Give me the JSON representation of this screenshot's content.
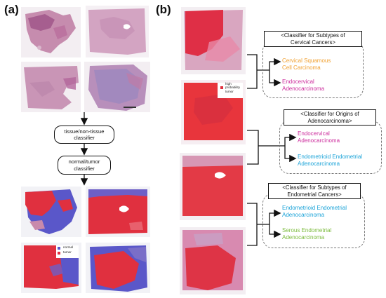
{
  "panel_a": {
    "label": "(a)",
    "flow_step1": "tissue/non-tissue\nclassifier",
    "flow_step2": "normal/tumor\nclassifier",
    "legend_normal": "normal",
    "legend_tumor": "tumor",
    "colors": {
      "normal": "#5a57c9",
      "tumor": "#e0303f",
      "tissue_pink": "#c98aab"
    }
  },
  "panel_b": {
    "label": "(b)",
    "prob_legend": "high\nprobability\ntumor",
    "classifier1": {
      "title": "<Classifier for Subtypes of\nCervical Cancers>",
      "out1": "Cervical Squamous\nCell Carcinoma",
      "out2": "Endocervical\nAdenocarcinoma"
    },
    "classifier2": {
      "title": "<Classifier for Origins of\nAdenocarcinoma>",
      "out1": "Endocervical\nAdenocarcinoma",
      "out2": "Endometrioid Endometrial\nAdenocarcinoma"
    },
    "classifier3": {
      "title": "<Classifier for Subtypes of\nEndometrial Cancers>",
      "out1": "Endometrioid Endometrial\nAdenocarcinoma",
      "out2": "Serous Endometrial\nAdenocarcinoma"
    },
    "colors": {
      "orange": "#f0a030",
      "magenta": "#cc2b9c",
      "cyan": "#1aa3d8",
      "green": "#7cbb3d"
    }
  }
}
